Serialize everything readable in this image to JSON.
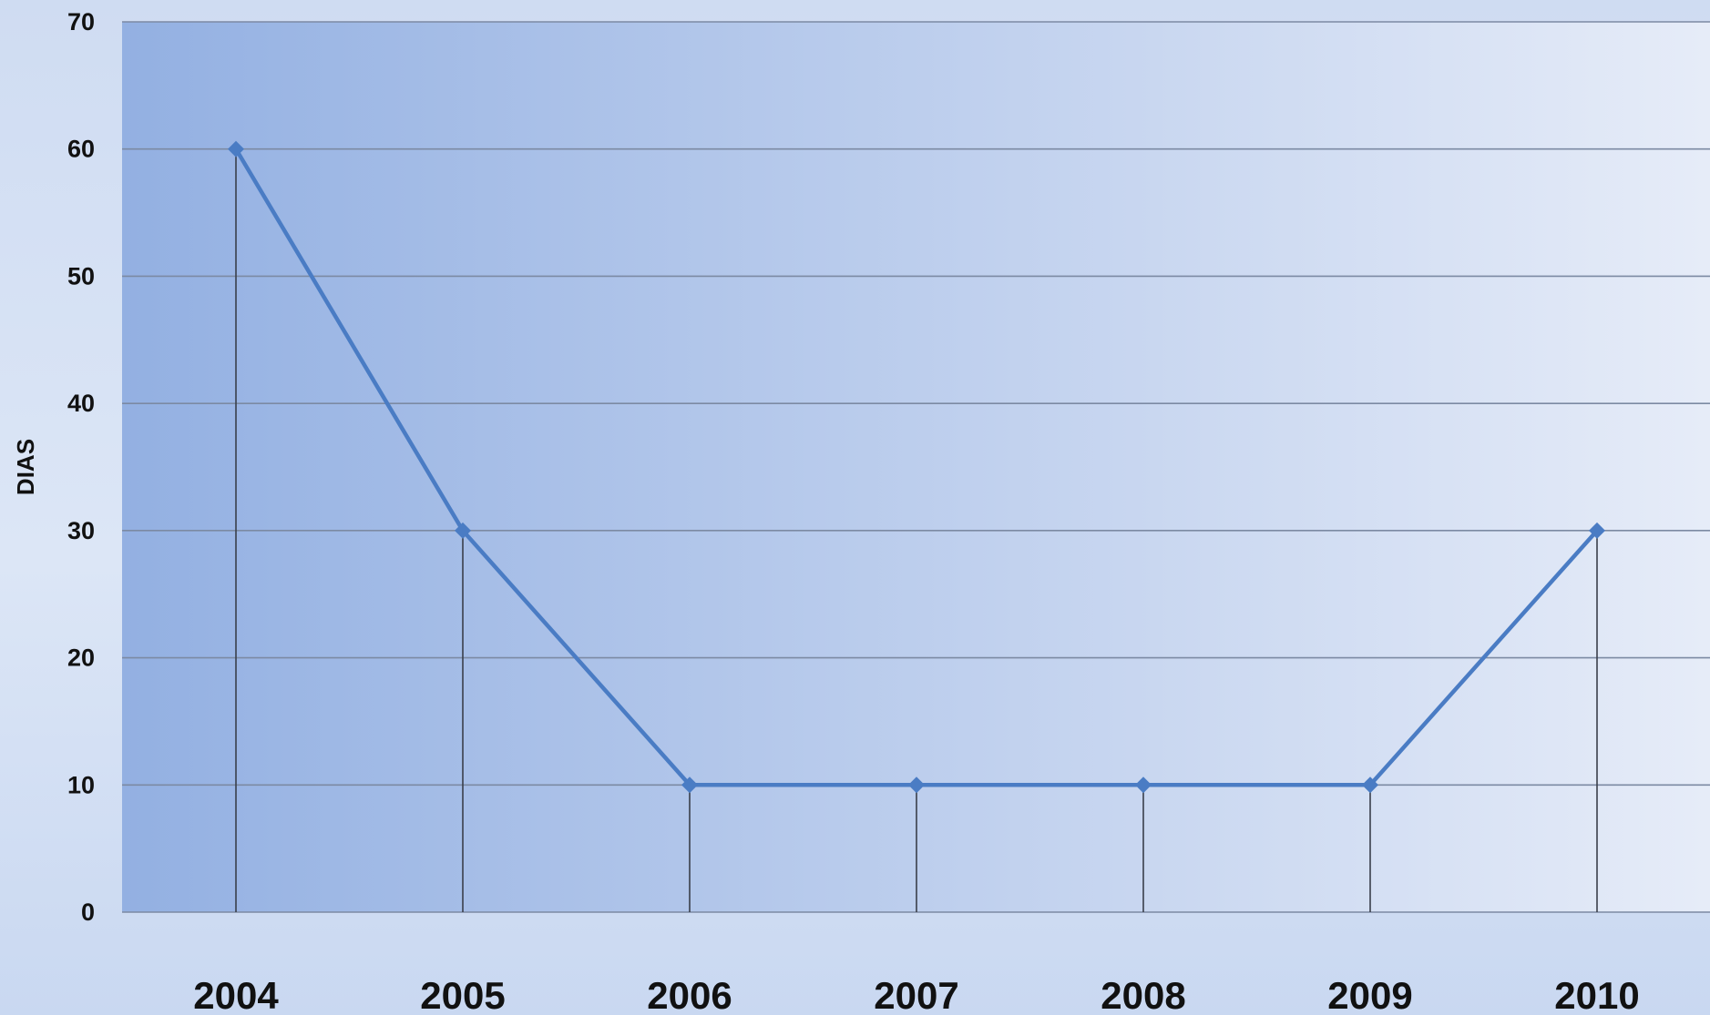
{
  "chart_data": {
    "type": "line",
    "title": "",
    "xlabel": "",
    "ylabel": "DIAS",
    "categories": [
      "2004",
      "2005",
      "2006",
      "2007",
      "2008",
      "2009",
      "2010"
    ],
    "series": [
      {
        "values": [
          60,
          30,
          10,
          10,
          10,
          10,
          30
        ]
      }
    ],
    "ylim": [
      0,
      70
    ],
    "yticks": [
      0,
      10,
      20,
      30,
      40,
      50,
      60,
      70
    ],
    "grid": true,
    "drop_lines": true,
    "legend": "none",
    "colors": {
      "line": "#4a7cc4",
      "marker": "#4a7cc4",
      "grid": "#7c8aa3",
      "drop_line": "#3a3f4a",
      "plot_left": "#93b0e2",
      "plot_right": "#e6ecf8"
    }
  }
}
